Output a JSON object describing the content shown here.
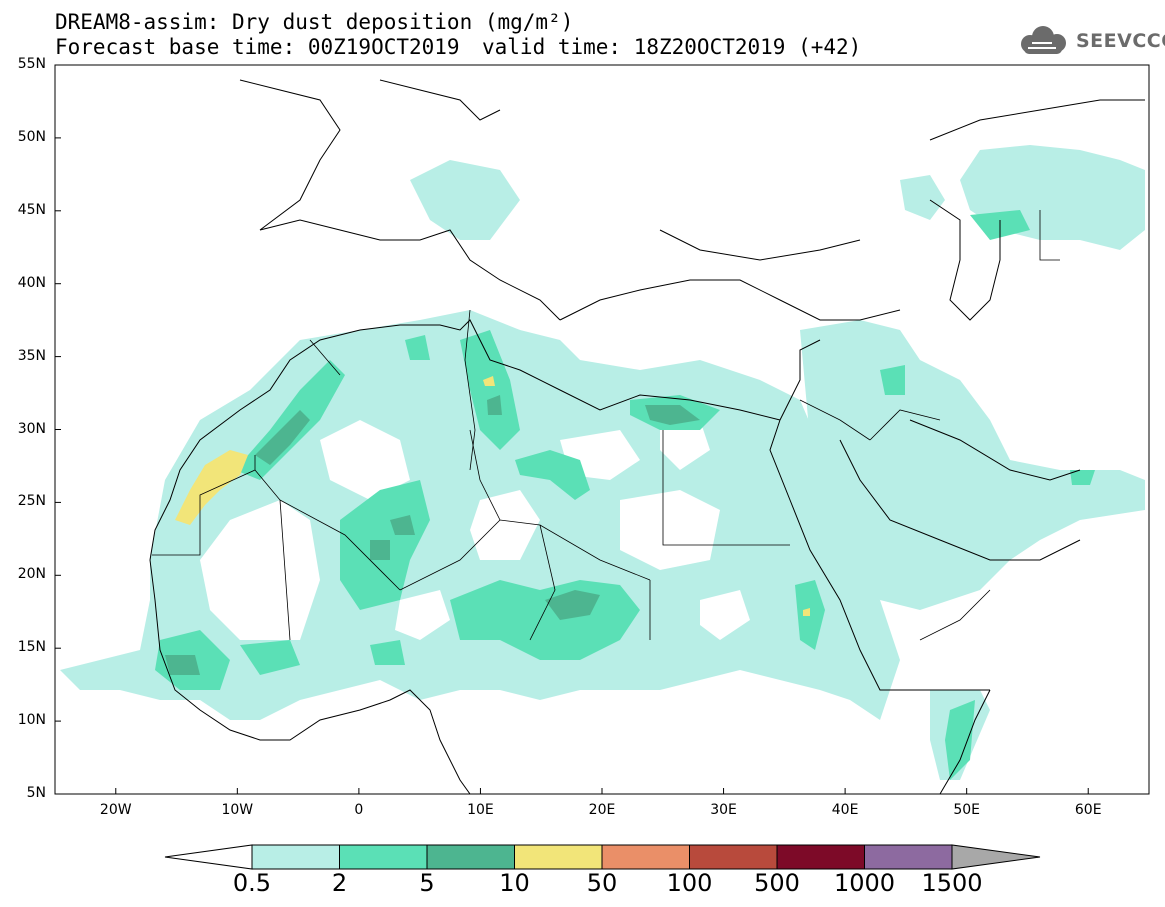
{
  "title": {
    "line1": "DREAM8-assim: Dry dust deposition (mg/m²)",
    "line2_left": "Forecast base time: 00Z19OCT2019",
    "line2_right": "valid time: 18Z20OCT2019 (+42)"
  },
  "logo": {
    "text": "SEEVCCC",
    "icon": "cloud-icon"
  },
  "map": {
    "lon_range": [
      -25,
      65
    ],
    "lat_range": [
      5,
      55
    ],
    "lat_ticks": [
      "55N",
      "50N",
      "45N",
      "40N",
      "35N",
      "30N",
      "25N",
      "20N",
      "15N",
      "10N",
      "5N"
    ],
    "lon_ticks": [
      "20W",
      "10W",
      "0",
      "10E",
      "20E",
      "30E",
      "40E",
      "50E",
      "60E"
    ],
    "background": "#ffffff",
    "border_color": "#000000"
  },
  "legend": {
    "labels": [
      "0.5",
      "2",
      "5",
      "10",
      "50",
      "100",
      "500",
      "1000",
      "1500"
    ],
    "colors": [
      "#ffffff",
      "#b8eee6",
      "#5be0b6",
      "#4db590",
      "#f2e579",
      "#ea8f68",
      "#b84a3c",
      "#7d0a28",
      "#8d6aa0",
      "#a8a8a8"
    ]
  }
}
